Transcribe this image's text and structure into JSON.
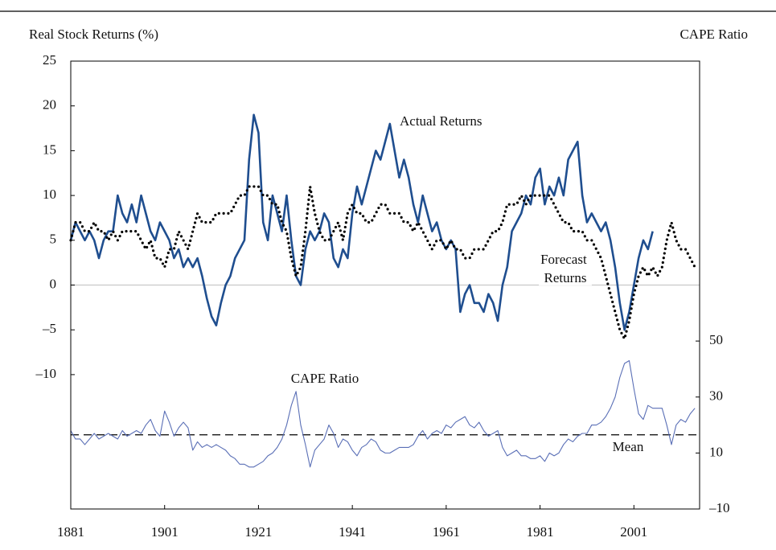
{
  "chart_data": {
    "type": "line",
    "y_axis_label": "Real Stock Returns (%)",
    "y2_axis_label": "CAPE Ratio",
    "x": [
      1881,
      1882,
      1883,
      1884,
      1885,
      1886,
      1887,
      1888,
      1889,
      1890,
      1891,
      1892,
      1893,
      1894,
      1895,
      1896,
      1897,
      1898,
      1899,
      1900,
      1901,
      1902,
      1903,
      1904,
      1905,
      1906,
      1907,
      1908,
      1909,
      1910,
      1911,
      1912,
      1913,
      1914,
      1915,
      1916,
      1917,
      1918,
      1919,
      1920,
      1921,
      1922,
      1923,
      1924,
      1925,
      1926,
      1927,
      1928,
      1929,
      1930,
      1931,
      1932,
      1933,
      1934,
      1935,
      1936,
      1937,
      1938,
      1939,
      1940,
      1941,
      1942,
      1943,
      1944,
      1945,
      1946,
      1947,
      1948,
      1949,
      1950,
      1951,
      1952,
      1953,
      1954,
      1955,
      1956,
      1957,
      1958,
      1959,
      1960,
      1961,
      1962,
      1963,
      1964,
      1965,
      1966,
      1967,
      1968,
      1969,
      1970,
      1971,
      1972,
      1973,
      1974,
      1975,
      1976,
      1977,
      1978,
      1979,
      1980,
      1981,
      1982,
      1983,
      1984,
      1985,
      1986,
      1987,
      1988,
      1989,
      1990,
      1991,
      1992,
      1993,
      1994,
      1995,
      1996,
      1997,
      1998,
      1999,
      2000,
      2001,
      2002,
      2003,
      2004,
      2005,
      2006,
      2007,
      2008,
      2009,
      2010,
      2011,
      2012,
      2013,
      2014
    ],
    "series": [
      {
        "name": "Actual Returns",
        "color": "#1f4e8f",
        "style": "solid",
        "values": [
          5,
          7,
          6,
          5,
          6,
          5,
          3,
          5,
          6,
          6,
          10,
          8,
          7,
          9,
          7,
          10,
          8,
          6,
          5,
          7,
          6,
          5,
          3,
          4,
          2,
          3,
          2,
          3,
          1,
          -1.5,
          -3.5,
          -4.5,
          -2,
          0,
          1,
          3,
          4,
          5,
          14,
          19,
          17,
          7,
          5,
          10,
          8,
          6,
          10,
          5,
          1,
          0,
          4,
          6,
          5,
          6,
          8,
          7,
          3,
          2,
          4,
          3,
          8,
          11,
          9,
          11,
          13,
          15,
          14,
          16,
          18,
          15,
          12,
          14,
          12,
          9,
          7,
          10,
          8,
          6,
          7,
          5,
          4,
          5,
          4,
          -3,
          -1,
          0,
          -2,
          -2,
          -3,
          -1,
          -2,
          -4,
          0,
          2,
          6,
          7,
          8,
          10,
          9,
          12,
          13,
          9,
          11,
          10,
          12,
          10,
          14,
          15,
          16,
          10,
          7,
          8,
          7,
          6,
          7,
          5,
          2,
          -2,
          -5,
          -3,
          0,
          3,
          5,
          4,
          6,
          null,
          null,
          null,
          null,
          null,
          null,
          null,
          null,
          null
        ]
      },
      {
        "name": "Forecast Returns",
        "color": "#000000",
        "style": "dotted",
        "values": [
          5,
          7,
          7,
          6,
          6,
          7,
          6,
          6,
          5,
          6,
          5,
          6,
          6,
          6,
          6,
          5,
          4,
          5,
          3,
          3,
          2,
          4,
          4,
          6,
          5,
          4,
          6,
          8,
          7,
          7,
          7,
          8,
          8,
          8,
          8,
          9,
          10,
          10,
          11,
          11,
          11,
          10,
          10,
          9,
          9,
          7,
          6,
          3,
          1,
          2,
          6,
          11,
          8,
          6,
          5,
          5,
          6,
          7,
          5,
          8,
          9,
          8,
          8,
          7,
          7,
          8,
          9,
          9,
          8,
          8,
          8,
          7,
          7,
          6,
          7,
          6,
          5,
          4,
          5,
          5,
          4,
          5,
          4,
          4,
          3,
          3,
          4,
          4,
          4,
          5,
          6,
          6,
          7,
          9,
          9,
          9,
          10,
          9,
          10,
          10,
          10,
          10,
          10,
          9,
          8,
          7,
          7,
          6,
          6,
          6,
          5,
          5,
          4,
          3,
          1,
          -1,
          -3,
          -5,
          -6,
          -4,
          -1,
          1,
          2,
          1,
          2,
          1,
          2,
          5,
          7,
          5,
          4,
          4,
          3,
          2
        ]
      },
      {
        "name": "CAPE Ratio",
        "color": "#5a6fb6",
        "style": "thin",
        "axis": "y2",
        "values": [
          18,
          15,
          15,
          13,
          15,
          17,
          15,
          16,
          17,
          16,
          15,
          18,
          16,
          17,
          18,
          17,
          20,
          22,
          18,
          16,
          25,
          21,
          16,
          19,
          21,
          19,
          11,
          14,
          12,
          13,
          12,
          13,
          12,
          11,
          9,
          8,
          6,
          6,
          5,
          5,
          6,
          7,
          9,
          10,
          12,
          15,
          20,
          27,
          32,
          20,
          13,
          5,
          11,
          13,
          15,
          20,
          17,
          12,
          15,
          14,
          11,
          9,
          12,
          13,
          15,
          14,
          11,
          10,
          10,
          11,
          12,
          12,
          12,
          13,
          16,
          18,
          15,
          17,
          18,
          17,
          20,
          19,
          21,
          22,
          23,
          20,
          19,
          21,
          18,
          16,
          17,
          18,
          12,
          9,
          10,
          11,
          9,
          9,
          8,
          8,
          9,
          7,
          10,
          9,
          10,
          13,
          15,
          14,
          16,
          17,
          17,
          20,
          20,
          21,
          23,
          26,
          30,
          37,
          42,
          43,
          33,
          24,
          22,
          27,
          26,
          26,
          26,
          20,
          13,
          20,
          22,
          21,
          24,
          26
        ]
      }
    ],
    "reference_line": {
      "name": "Mean",
      "value": 16.5,
      "axis": "y2",
      "style": "dashed",
      "color": "#000000"
    },
    "xlim": [
      1881,
      2015
    ],
    "xticks": [
      1881,
      1901,
      1921,
      1941,
      1961,
      1981,
      2001
    ],
    "ylim": [
      -25,
      25
    ],
    "yticks": [
      {
        "value": -10,
        "label": "–10"
      },
      {
        "value": -5,
        "label": "–5"
      },
      0,
      5,
      10,
      15,
      20,
      25
    ],
    "y2lim": [
      -10,
      150
    ],
    "y2ticks": [
      {
        "value": -10,
        "label": "–10"
      },
      10,
      30,
      50
    ],
    "zero_line": true
  }
}
